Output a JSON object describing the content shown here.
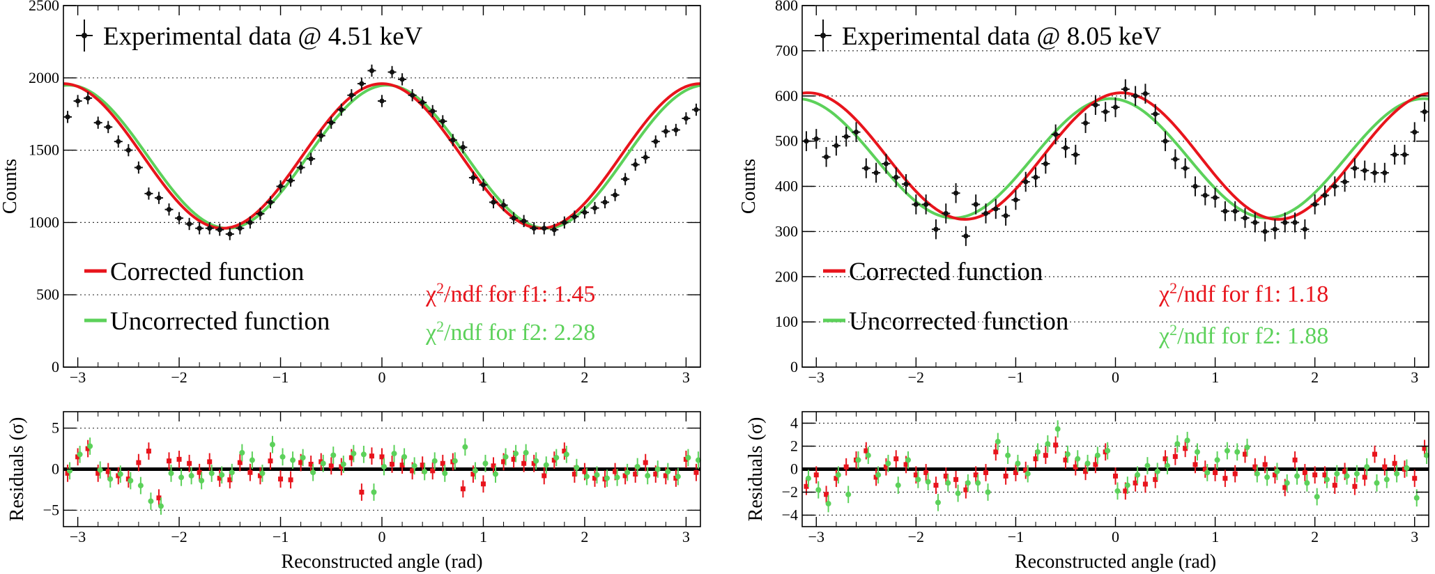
{
  "colors": {
    "data": "#111111",
    "corrected": "#e8141c",
    "uncorrected": "#5cd15a",
    "grid": "#333333",
    "zero_line": "#000000"
  },
  "chart_data": [
    {
      "type": "line",
      "panel": "left",
      "legend": {
        "data": "Experimental data @ 4.51 keV",
        "corrected": "Corrected function",
        "uncorrected": "Uncorrected function"
      },
      "chi2": [
        {
          "prefix": "χ",
          "sup": "2",
          "rest": "/ndf for f1: 1.45",
          "color": "#e8141c"
        },
        {
          "prefix": "χ",
          "sup": "2",
          "rest": "/ndf for f2: 2.28",
          "color": "#5cd15a"
        }
      ],
      "main": {
        "ylabel": "Counts",
        "xlim": [
          -3.1416,
          3.1416
        ],
        "ylim": [
          0,
          2500
        ],
        "yticks": [
          0,
          500,
          1000,
          1500,
          2000,
          2500
        ],
        "ygrid": [
          500,
          1000,
          1500,
          2000
        ],
        "x_ticks": [
          -3,
          -2,
          -1,
          0,
          1,
          2,
          3
        ],
        "corrected_fn": {
          "offset": 1460,
          "amp": 500,
          "phase": 0.0
        },
        "uncorrected_fn": {
          "offset": 1455,
          "amp": 495,
          "phase": 0.05
        },
        "points": {
          "x": [
            -3.1,
            -3.0,
            -2.9,
            -2.8,
            -2.7,
            -2.6,
            -2.5,
            -2.4,
            -2.3,
            -2.2,
            -2.1,
            -2.0,
            -1.9,
            -1.8,
            -1.7,
            -1.6,
            -1.5,
            -1.4,
            -1.3,
            -1.2,
            -1.1,
            -1.0,
            -0.9,
            -0.8,
            -0.7,
            -0.6,
            -0.5,
            -0.4,
            -0.3,
            -0.2,
            -0.1,
            0.0,
            0.1,
            0.2,
            0.3,
            0.4,
            0.5,
            0.6,
            0.7,
            0.8,
            0.9,
            1.0,
            1.1,
            1.2,
            1.3,
            1.4,
            1.5,
            1.6,
            1.7,
            1.8,
            1.9,
            2.0,
            2.1,
            2.2,
            2.3,
            2.4,
            2.5,
            2.6,
            2.7,
            2.8,
            2.9,
            3.0,
            3.1
          ],
          "y": [
            1730,
            1840,
            1860,
            1690,
            1660,
            1560,
            1500,
            1380,
            1200,
            1170,
            1090,
            1030,
            990,
            960,
            960,
            950,
            920,
            960,
            1000,
            1060,
            1140,
            1250,
            1290,
            1380,
            1440,
            1600,
            1690,
            1780,
            1880,
            1960,
            2050,
            1840,
            2040,
            1990,
            1880,
            1830,
            1770,
            1700,
            1570,
            1520,
            1310,
            1260,
            1140,
            1120,
            1030,
            1010,
            960,
            960,
            950,
            1000,
            1040,
            1070,
            1100,
            1140,
            1190,
            1300,
            1400,
            1450,
            1560,
            1630,
            1640,
            1720,
            1780
          ],
          "yerr": 42
        }
      },
      "resid": {
        "ylabel": "Residuals (σ)",
        "xlabel": "Reconstructed angle (rad)",
        "ylim": [
          -7,
          7
        ],
        "yticks": [
          -5,
          0,
          5
        ],
        "ygrid": [
          -5,
          5
        ],
        "x_ticks": [
          -3,
          -2,
          -1,
          0,
          1,
          2,
          3
        ],
        "x": [
          -3.1,
          -3.0,
          -2.9,
          -2.8,
          -2.7,
          -2.6,
          -2.5,
          -2.4,
          -2.3,
          -2.2,
          -2.1,
          -2.0,
          -1.9,
          -1.8,
          -1.7,
          -1.6,
          -1.5,
          -1.4,
          -1.3,
          -1.2,
          -1.1,
          -1.0,
          -0.9,
          -0.8,
          -0.7,
          -0.6,
          -0.5,
          -0.4,
          -0.3,
          -0.2,
          -0.1,
          0.0,
          0.1,
          0.2,
          0.3,
          0.4,
          0.5,
          0.6,
          0.7,
          0.8,
          0.9,
          1.0,
          1.1,
          1.2,
          1.3,
          1.4,
          1.5,
          1.6,
          1.7,
          1.8,
          1.9,
          2.0,
          2.1,
          2.2,
          2.3,
          2.4,
          2.5,
          2.6,
          2.7,
          2.8,
          2.9,
          3.0,
          3.1
        ],
        "corrected": [
          -0.5,
          1.5,
          2.5,
          -0.5,
          -0.3,
          -0.8,
          -1.2,
          0.8,
          2.2,
          -3.5,
          1.0,
          1.2,
          0.7,
          -0.4,
          0.9,
          -1.1,
          -1.3,
          0.8,
          -0.4,
          -0.8,
          1.0,
          -1.2,
          -1.3,
          0.8,
          0.6,
          0.9,
          0.4,
          0.3,
          1.4,
          -2.8,
          1.6,
          1.5,
          0.6,
          0.5,
          -0.2,
          0.5,
          -0.2,
          0.7,
          0.9,
          -2.4,
          -0.6,
          -1.8,
          0.4,
          0.9,
          1.2,
          0.7,
          0.7,
          -0.8,
          1.1,
          2.2,
          -0.6,
          -0.3,
          -1.1,
          -1.2,
          -0.3,
          -0.8,
          -0.6,
          0.8,
          -0.6,
          -0.8,
          -1.1,
          1.2,
          -0.4
        ],
        "uncorrected": [
          -0.2,
          1.8,
          2.8,
          -0.1,
          -1.2,
          -0.6,
          -1.4,
          -2.0,
          -3.9,
          -4.5,
          -0.5,
          -1.0,
          -0.8,
          -1.4,
          -0.5,
          -0.7,
          -0.4,
          2.0,
          1.1,
          -0.5,
          3.0,
          1.5,
          1.1,
          1.4,
          -0.4,
          0.7,
          1.7,
          0.6,
          1.9,
          1.8,
          -2.8,
          0.3,
          1.9,
          1.5,
          0.4,
          -0.3,
          1.0,
          -0.5,
          1.0,
          2.7,
          -0.2,
          0.7,
          -0.6,
          1.5,
          1.9,
          2.0,
          1.0,
          0.5,
          1.4,
          1.8,
          0.2,
          -0.9,
          -0.7,
          -1.1,
          -1.0,
          -0.4,
          0.3,
          -0.8,
          0.0,
          -0.3,
          -0.9,
          1.4,
          1.1
        ]
      }
    },
    {
      "type": "line",
      "panel": "right",
      "legend": {
        "data": "Experimental data @ 8.05 keV",
        "corrected": "Corrected function",
        "uncorrected": "Uncorrected function"
      },
      "chi2": [
        {
          "prefix": "χ",
          "sup": "2",
          "rest": "/ndf for f1: 1.18",
          "color": "#e8141c"
        },
        {
          "prefix": "χ",
          "sup": "2",
          "rest": "/ndf for f2: 1.88",
          "color": "#5cd15a"
        }
      ],
      "main": {
        "ylabel": "Counts",
        "xlim": [
          -3.1416,
          3.1416
        ],
        "ylim": [
          0,
          800
        ],
        "yticks": [
          0,
          100,
          200,
          300,
          400,
          500,
          600,
          700,
          800
        ],
        "ygrid": [
          100,
          200,
          300,
          400,
          500,
          600,
          700
        ],
        "x_ticks": [
          -3,
          -2,
          -1,
          0,
          1,
          2,
          3
        ],
        "corrected_fn": {
          "offset": 467,
          "amp": 140,
          "phase": 0.06
        },
        "uncorrected_fn": {
          "offset": 462,
          "amp": 132,
          "phase": -0.05
        },
        "points": {
          "x": [
            -3.1,
            -3.0,
            -2.9,
            -2.8,
            -2.7,
            -2.6,
            -2.5,
            -2.4,
            -2.3,
            -2.2,
            -2.1,
            -2.0,
            -1.9,
            -1.8,
            -1.7,
            -1.6,
            -1.5,
            -1.4,
            -1.3,
            -1.2,
            -1.1,
            -1.0,
            -0.9,
            -0.8,
            -0.7,
            -0.6,
            -0.5,
            -0.4,
            -0.3,
            -0.2,
            -0.1,
            0.0,
            0.1,
            0.2,
            0.3,
            0.4,
            0.5,
            0.6,
            0.7,
            0.8,
            0.9,
            1.0,
            1.1,
            1.2,
            1.3,
            1.4,
            1.5,
            1.6,
            1.7,
            1.8,
            1.9,
            2.0,
            2.1,
            2.2,
            2.3,
            2.4,
            2.5,
            2.6,
            2.7,
            2.8,
            2.9,
            3.0,
            3.1
          ],
          "y": [
            500,
            505,
            465,
            490,
            510,
            520,
            440,
            430,
            450,
            420,
            405,
            360,
            360,
            305,
            340,
            385,
            290,
            360,
            340,
            350,
            335,
            370,
            410,
            420,
            450,
            515,
            485,
            470,
            540,
            580,
            565,
            575,
            615,
            600,
            605,
            560,
            500,
            460,
            440,
            400,
            380,
            375,
            345,
            345,
            330,
            320,
            300,
            305,
            320,
            320,
            305,
            360,
            380,
            400,
            410,
            440,
            435,
            430,
            430,
            470,
            470,
            520,
            565
          ]
        }
      },
      "resid": {
        "ylabel": "Residuals (σ)",
        "xlabel": "Reconstructed angle (rad)",
        "ylim": [
          -5,
          5
        ],
        "yticks": [
          -4,
          -2,
          0,
          2,
          4
        ],
        "ygrid": [
          -4,
          -2,
          2,
          4
        ],
        "x_ticks": [
          -3,
          -2,
          -1,
          0,
          1,
          2,
          3
        ],
        "x": [
          -3.1,
          -3.0,
          -2.9,
          -2.8,
          -2.7,
          -2.6,
          -2.5,
          -2.4,
          -2.3,
          -2.2,
          -2.1,
          -2.0,
          -1.9,
          -1.8,
          -1.7,
          -1.6,
          -1.5,
          -1.4,
          -1.3,
          -1.2,
          -1.1,
          -1.0,
          -0.9,
          -0.8,
          -0.7,
          -0.6,
          -0.5,
          -0.4,
          -0.3,
          -0.2,
          -0.1,
          0.0,
          0.1,
          0.2,
          0.3,
          0.4,
          0.5,
          0.6,
          0.7,
          0.8,
          0.9,
          1.0,
          1.1,
          1.2,
          1.3,
          1.4,
          1.5,
          1.6,
          1.7,
          1.8,
          1.9,
          2.0,
          2.1,
          2.2,
          2.3,
          2.4,
          2.5,
          2.6,
          2.7,
          2.8,
          2.9,
          3.0,
          3.1
        ],
        "corrected": [
          -1.5,
          -0.5,
          -2.2,
          -0.8,
          0.2,
          0.8,
          1.6,
          -0.7,
          0.2,
          0.9,
          0.4,
          -0.5,
          -0.3,
          -1.4,
          -0.6,
          -0.9,
          -1.8,
          -0.5,
          -0.3,
          1.5,
          -0.6,
          -0.3,
          -0.1,
          0.9,
          1.2,
          2.1,
          0.8,
          0.2,
          -0.2,
          0.4,
          1.5,
          -0.6,
          -1.9,
          -1.2,
          -1.3,
          -0.9,
          0.9,
          1.1,
          1.8,
          0.4,
          0.0,
          -0.3,
          -0.8,
          -0.4,
          1.3,
          0.2,
          0.4,
          -0.5,
          -1.6,
          0.8,
          -0.3,
          -0.5,
          -0.5,
          -1.4,
          -0.2,
          -1.5,
          -0.7,
          1.3,
          0.2,
          0.5,
          0.0,
          -0.8,
          1.8
        ],
        "uncorrected": [
          -0.8,
          -1.8,
          -3.0,
          -0.5,
          -2.2,
          0.8,
          1.2,
          -0.5,
          0.5,
          -1.4,
          0.8,
          -0.9,
          -1.1,
          -2.9,
          -1.2,
          -2.1,
          -1.2,
          -1.2,
          -2.0,
          2.4,
          1.2,
          0.5,
          -0.4,
          1.5,
          2.2,
          3.5,
          1.3,
          0.9,
          0.5,
          1.2,
          1.6,
          -1.9,
          -1.4,
          -0.5,
          0.3,
          -0.2,
          0.3,
          2.2,
          2.5,
          1.5,
          -0.3,
          0.8,
          1.6,
          1.5,
          1.9,
          -0.4,
          -0.7,
          -0.2,
          -1.2,
          -0.6,
          -1.2,
          -2.4,
          -0.9,
          -0.4,
          -0.6,
          -0.4,
          0.2,
          -1.2,
          -0.9,
          -0.4,
          0.1,
          -2.5,
          1.2
        ]
      }
    }
  ]
}
